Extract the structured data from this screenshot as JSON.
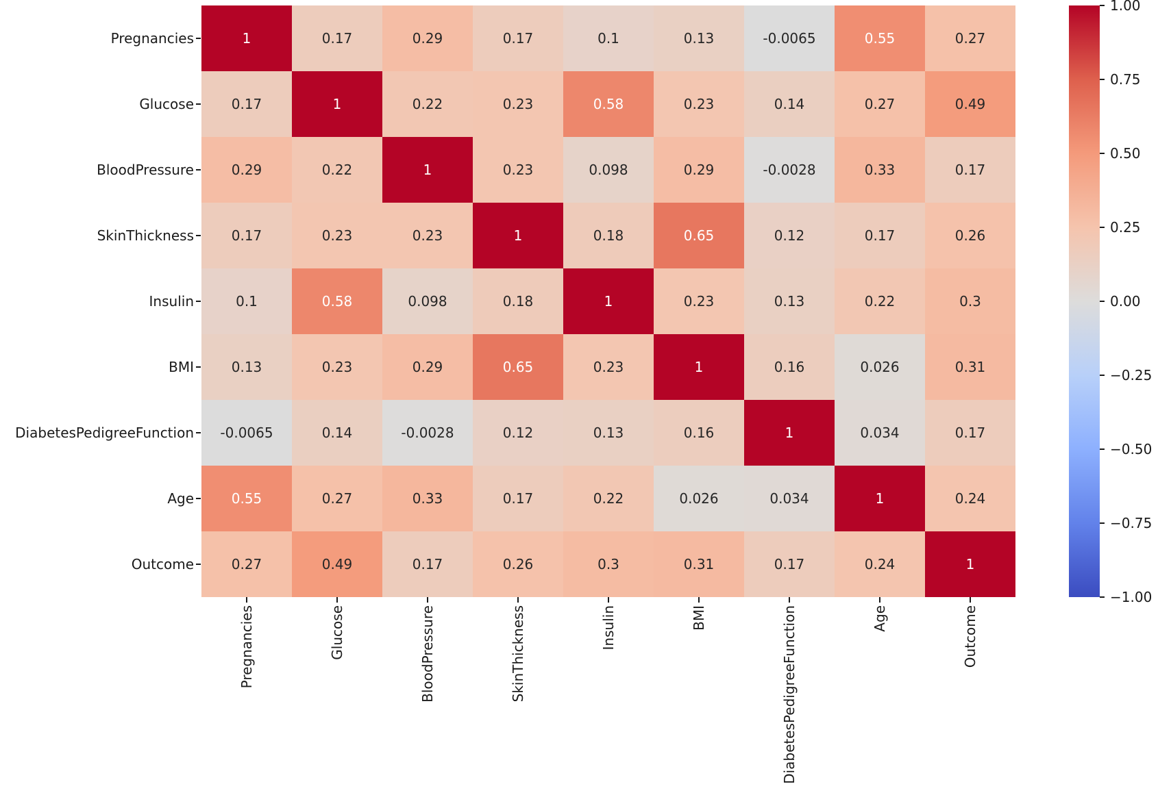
{
  "chart_data": {
    "type": "heatmap",
    "title": "",
    "x_categories": [
      "Pregnancies",
      "Glucose",
      "BloodPressure",
      "SkinThickness",
      "Insulin",
      "BMI",
      "DiabetesPedigreeFunction",
      "Age",
      "Outcome"
    ],
    "y_categories": [
      "Pregnancies",
      "Glucose",
      "BloodPressure",
      "SkinThickness",
      "Insulin",
      "BMI",
      "DiabetesPedigreeFunction",
      "Age",
      "Outcome"
    ],
    "values": [
      [
        1,
        0.17,
        0.29,
        0.17,
        0.1,
        0.13,
        -0.0065,
        0.55,
        0.27
      ],
      [
        0.17,
        1,
        0.22,
        0.23,
        0.58,
        0.23,
        0.14,
        0.27,
        0.49
      ],
      [
        0.29,
        0.22,
        1,
        0.23,
        0.098,
        0.29,
        -0.0028,
        0.33,
        0.17
      ],
      [
        0.17,
        0.23,
        0.23,
        1,
        0.18,
        0.65,
        0.12,
        0.17,
        0.26
      ],
      [
        0.1,
        0.58,
        0.098,
        0.18,
        1,
        0.23,
        0.13,
        0.22,
        0.3
      ],
      [
        0.13,
        0.23,
        0.29,
        0.65,
        0.23,
        1,
        0.16,
        0.026,
        0.31
      ],
      [
        -0.0065,
        0.14,
        -0.0028,
        0.12,
        0.13,
        0.16,
        1,
        0.034,
        0.17
      ],
      [
        0.55,
        0.27,
        0.33,
        0.17,
        0.22,
        0.026,
        0.034,
        1,
        0.24
      ],
      [
        0.27,
        0.49,
        0.17,
        0.26,
        0.3,
        0.31,
        0.17,
        0.24,
        1
      ]
    ],
    "annotations": [
      [
        "1",
        "0.17",
        "0.29",
        "0.17",
        "0.1",
        "0.13",
        "-0.0065",
        "0.55",
        "0.27"
      ],
      [
        "0.17",
        "1",
        "0.22",
        "0.23",
        "0.58",
        "0.23",
        "0.14",
        "0.27",
        "0.49"
      ],
      [
        "0.29",
        "0.22",
        "1",
        "0.23",
        "0.098",
        "0.29",
        "-0.0028",
        "0.33",
        "0.17"
      ],
      [
        "0.17",
        "0.23",
        "0.23",
        "1",
        "0.18",
        "0.65",
        "0.12",
        "0.17",
        "0.26"
      ],
      [
        "0.1",
        "0.58",
        "0.098",
        "0.18",
        "1",
        "0.23",
        "0.13",
        "0.22",
        "0.3"
      ],
      [
        "0.13",
        "0.23",
        "0.29",
        "0.65",
        "0.23",
        "1",
        "0.16",
        "0.026",
        "0.31"
      ],
      [
        "-0.0065",
        "0.14",
        "-0.0028",
        "0.12",
        "0.13",
        "0.16",
        "1",
        "0.034",
        "0.17"
      ],
      [
        "0.55",
        "0.27",
        "0.33",
        "0.17",
        "0.22",
        "0.026",
        "0.034",
        "1",
        "0.24"
      ],
      [
        "0.27",
        "0.49",
        "0.17",
        "0.26",
        "0.3",
        "0.31",
        "0.17",
        "0.24",
        "1"
      ]
    ],
    "colormap": "coolwarm",
    "vmin": -1,
    "vmax": 1,
    "legend_position": "right",
    "grid": false,
    "colorbar_ticks": [
      "1.00",
      "0.75",
      "0.50",
      "0.25",
      "0.00",
      "−0.25",
      "−0.50",
      "−0.75",
      "−1.00"
    ],
    "colormap_stops": [
      [
        0.0,
        "#3b4cc0"
      ],
      [
        0.125,
        "#6282ea"
      ],
      [
        0.25,
        "#8db0fe"
      ],
      [
        0.375,
        "#b8d0f9"
      ],
      [
        0.5,
        "#dddcdb"
      ],
      [
        0.625,
        "#f5c4ad"
      ],
      [
        0.75,
        "#f49a7b"
      ],
      [
        0.875,
        "#de604d"
      ],
      [
        1.0,
        "#b40426"
      ]
    ]
  },
  "colors": {
    "annot_dark": "#262626",
    "annot_light": "#ffffff",
    "tick": "#1a1a1a",
    "background": "#ffffff"
  }
}
